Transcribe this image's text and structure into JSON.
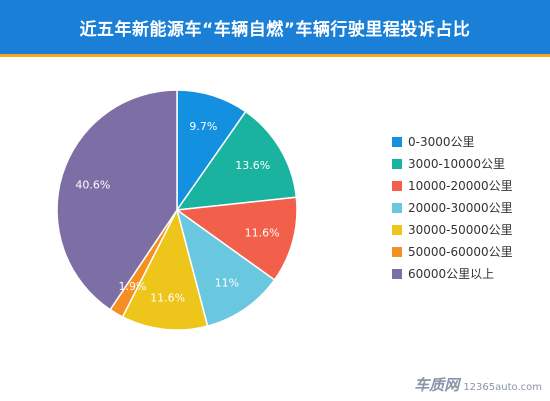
{
  "header": {
    "title": "近五年新能源车“车辆自燃”车辆行驶里程投诉占比"
  },
  "colors": {
    "header_bg": "#1a7fd6",
    "header_accent": "#f5a623"
  },
  "chart_data": {
    "type": "pie",
    "title": "近五年新能源车“车辆自燃”车辆行驶里程投诉占比",
    "legend_position": "right",
    "slices": [
      {
        "name": "0-3000公里",
        "label": "9.7%",
        "value": 9.7,
        "color": "#1490e0"
      },
      {
        "name": "3000-10000公里",
        "label": "13.6%",
        "value": 13.6,
        "color": "#19b3a0"
      },
      {
        "name": "10000-20000公里",
        "label": "11.6%",
        "value": 11.6,
        "color": "#f2604b"
      },
      {
        "name": "20000-30000公里",
        "label": "11%",
        "value": 11.0,
        "color": "#6ac7e0"
      },
      {
        "name": "30000-50000公里",
        "label": "11.6%",
        "value": 11.6,
        "color": "#eec51a"
      },
      {
        "name": "50000-60000公里",
        "label": "1.9%",
        "value": 1.9,
        "color": "#f58f22"
      },
      {
        "name": "60000公里以上",
        "label": "40.6%",
        "value": 40.6,
        "color": "#7e6ea6"
      }
    ]
  },
  "watermark": {
    "brand": "车质网",
    "site": "12365auto.com"
  }
}
